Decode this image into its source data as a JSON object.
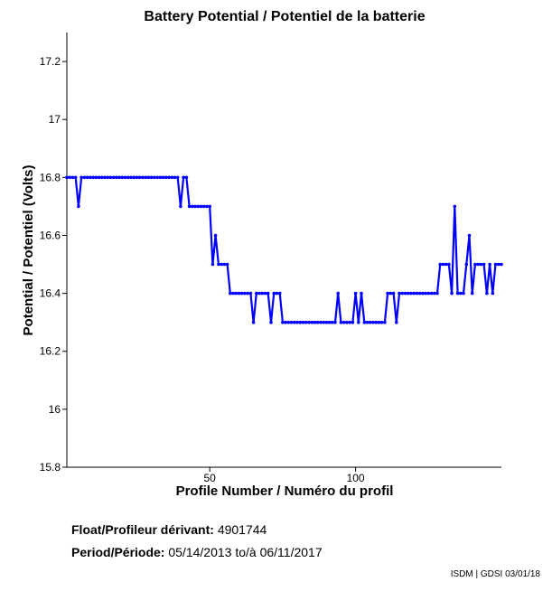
{
  "chart_data": {
    "type": "line",
    "title": "Battery Potential / Potentiel de la batterie",
    "xlabel": "Profile Number / Numéro du profil",
    "ylabel": "Potential / Potentiel (Volts)",
    "xlim": [
      1,
      150
    ],
    "ylim": [
      15.8,
      17.3
    ],
    "xticks": [
      50,
      100
    ],
    "yticks": [
      15.8,
      16,
      16.2,
      16.4,
      16.6,
      16.8,
      17,
      17.2
    ],
    "grid": false,
    "line_color": "#0000ff",
    "series": [
      {
        "values": [
          16.8,
          16.8,
          16.8,
          16.8,
          16.7,
          16.8,
          16.8,
          16.8,
          16.8,
          16.8,
          16.8,
          16.8,
          16.8,
          16.8,
          16.8,
          16.8,
          16.8,
          16.8,
          16.8,
          16.8,
          16.8,
          16.8,
          16.8,
          16.8,
          16.8,
          16.8,
          16.8,
          16.8,
          16.8,
          16.8,
          16.8,
          16.8,
          16.8,
          16.8,
          16.8,
          16.8,
          16.8,
          16.8,
          16.8,
          16.7,
          16.8,
          16.8,
          16.7,
          16.7,
          16.7,
          16.7,
          16.7,
          16.7,
          16.7,
          16.7,
          16.5,
          16.6,
          16.5,
          16.5,
          16.5,
          16.5,
          16.4,
          16.4,
          16.4,
          16.4,
          16.4,
          16.4,
          16.4,
          16.4,
          16.3,
          16.4,
          16.4,
          16.4,
          16.4,
          16.4,
          16.3,
          16.4,
          16.4,
          16.4,
          16.3,
          16.3,
          16.3,
          16.3,
          16.3,
          16.3,
          16.3,
          16.3,
          16.3,
          16.3,
          16.3,
          16.3,
          16.3,
          16.3,
          16.3,
          16.3,
          16.3,
          16.3,
          16.3,
          16.4,
          16.3,
          16.3,
          16.3,
          16.3,
          16.3,
          16.4,
          16.3,
          16.4,
          16.3,
          16.3,
          16.3,
          16.3,
          16.3,
          16.3,
          16.3,
          16.3,
          16.4,
          16.4,
          16.4,
          16.3,
          16.4,
          16.4,
          16.4,
          16.4,
          16.4,
          16.4,
          16.4,
          16.4,
          16.4,
          16.4,
          16.4,
          16.4,
          16.4,
          16.4,
          16.5,
          16.5,
          16.5,
          16.5,
          16.4,
          16.7,
          16.4,
          16.4,
          16.4,
          16.5,
          16.6,
          16.4,
          16.5,
          16.5,
          16.5,
          16.5,
          16.4,
          16.5,
          16.4,
          16.5,
          16.5,
          16.5
        ]
      }
    ]
  },
  "info": {
    "float_label": "Float/Profileur dérivant:",
    "float_id": "4901744",
    "period_label": "Period/Période:",
    "period_from": "05/14/2013",
    "period_sep": "to/à",
    "period_to": "06/11/2017"
  },
  "credit": "ISDM | GDSI 03/01/18"
}
